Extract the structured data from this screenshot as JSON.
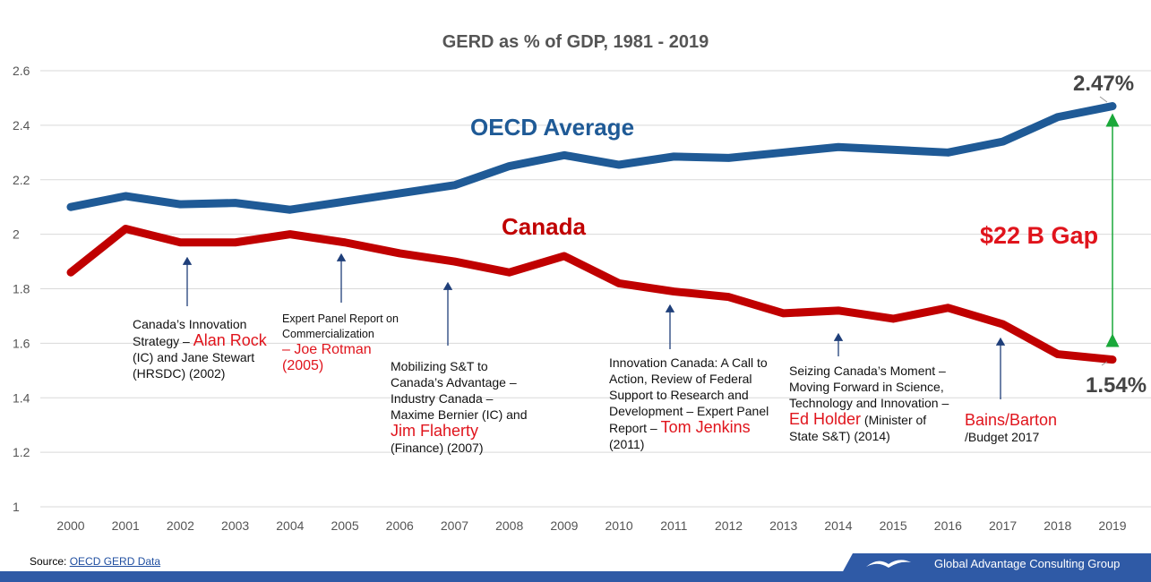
{
  "chart_data": {
    "type": "line",
    "title": "GERD as % of GDP, 1981 - 2019",
    "xlabel": "",
    "ylabel": "",
    "ylim": [
      1,
      2.6
    ],
    "yticks": [
      "1",
      "1.2",
      "1.4",
      "1.6",
      "1.8",
      "2",
      "2.2",
      "2.4",
      "2.6"
    ],
    "categories": [
      "2000",
      "2001",
      "2002",
      "2003",
      "2004",
      "2005",
      "2006",
      "2007",
      "2008",
      "2009",
      "2010",
      "2011",
      "2012",
      "2013",
      "2014",
      "2015",
      "2016",
      "2017",
      "2018",
      "2019"
    ],
    "series": [
      {
        "name": "OECD Average",
        "color": "#1f5a96",
        "values": [
          2.1,
          2.14,
          2.11,
          2.115,
          2.09,
          2.12,
          2.15,
          2.18,
          2.25,
          2.29,
          2.255,
          2.285,
          2.28,
          2.3,
          2.32,
          2.31,
          2.3,
          2.34,
          2.43,
          2.47
        ]
      },
      {
        "name": "Canada",
        "color": "#c00000",
        "values": [
          1.86,
          2.02,
          1.97,
          1.97,
          2.0,
          1.97,
          1.93,
          1.9,
          1.86,
          1.92,
          1.82,
          1.79,
          1.77,
          1.71,
          1.72,
          1.69,
          1.73,
          1.67,
          1.56,
          1.54
        ]
      }
    ],
    "grid": true,
    "end_labels": {
      "oecd": "2.47%",
      "canada": "1.54%"
    },
    "gap_label": "$22 B Gap"
  },
  "annotations": {
    "a2002": {
      "t1": "Canada’s Innovation Strategy – ",
      "r1": "Alan Rock",
      "t2": " (IC) and Jane Stewart (HRSDC) (2002)"
    },
    "a2005": {
      "t1": "Expert Panel Report on Commercialization",
      "r1": "– Joe Rotman (2005)"
    },
    "a2007": {
      "t1": "Mobilizing S&T to Canada’s Advantage – Industry Canada – Maxime Bernier (IC) and ",
      "r1": "Jim Flaherty",
      "t2": " (Finance) (2007)"
    },
    "a2011": {
      "t1": "Innovation Canada: A Call to Action, Review of Federal Support to Research and Development – Expert Panel Report – ",
      "r1": "Tom Jenkins",
      "t2": " (2011)"
    },
    "a2014": {
      "t1": "Seizing Canada’s Moment – Moving Forward in Science, Technology and Innovation – ",
      "r1": "Ed Holder",
      "t2": " (Minister of State S&T) (2014)"
    },
    "a2017": {
      "r1": "Bains/Barton",
      "t2": "/Budget 2017"
    }
  },
  "footer": {
    "source_label": "Source: ",
    "source_link": "OECD GERD Data",
    "company": "Global Advantage Consulting Group"
  }
}
